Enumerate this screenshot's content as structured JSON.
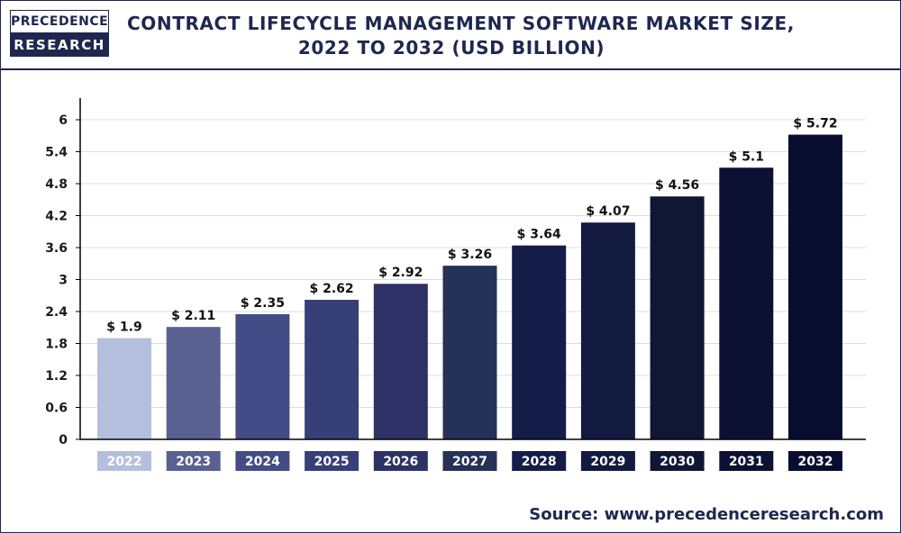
{
  "logo": {
    "line1": "PRECEDENCE",
    "line2": "RESEARCH"
  },
  "source": "Source: www.precedenceresearch.com",
  "colors": {
    "bars": [
      "#b4bfde",
      "#586191",
      "#434c86",
      "#373f78",
      "#2d3165",
      "#253156",
      "#141d48",
      "#121a3f",
      "#101633",
      "#0c1133",
      "#080d30"
    ],
    "axis": "#000000",
    "grid": "#dddddd"
  },
  "chart_data": {
    "type": "bar",
    "title": "CONTRACT LIFECYCLE MANAGEMENT SOFTWARE MARKET SIZE, 2022 TO 2032 (USD BILLION)",
    "title_lines": [
      "CONTRACT LIFECYCLE MANAGEMENT SOFTWARE MARKET SIZE,",
      "2022 TO 2032 (USD BILLION)"
    ],
    "categories": [
      "2022",
      "2023",
      "2024",
      "2025",
      "2026",
      "2027",
      "2028",
      "2029",
      "2030",
      "2031",
      "2032"
    ],
    "values": [
      1.9,
      2.11,
      2.35,
      2.62,
      2.92,
      3.26,
      3.64,
      4.07,
      4.56,
      5.1,
      5.72
    ],
    "value_labels": [
      "$ 1.9",
      "$ 2.11",
      "$ 2.35",
      "$ 2.62",
      "$ 2.92",
      "$ 3.26",
      "$ 3.64",
      "$ 4.07",
      "$ 4.56",
      "$ 5.1",
      "$ 5.72"
    ],
    "yticks": [
      "0",
      "0.6",
      "1.2",
      "1.8",
      "2.4",
      "3",
      "3.6",
      "4.2",
      "4.8",
      "5.4",
      "6"
    ],
    "ytick_values": [
      0,
      0.6,
      1.2,
      1.8,
      2.4,
      3,
      3.6,
      4.2,
      4.8,
      5.4,
      6
    ],
    "ylim": [
      0,
      6
    ],
    "xlabel": "",
    "ylabel": "",
    "grid": true,
    "legend": "none"
  }
}
